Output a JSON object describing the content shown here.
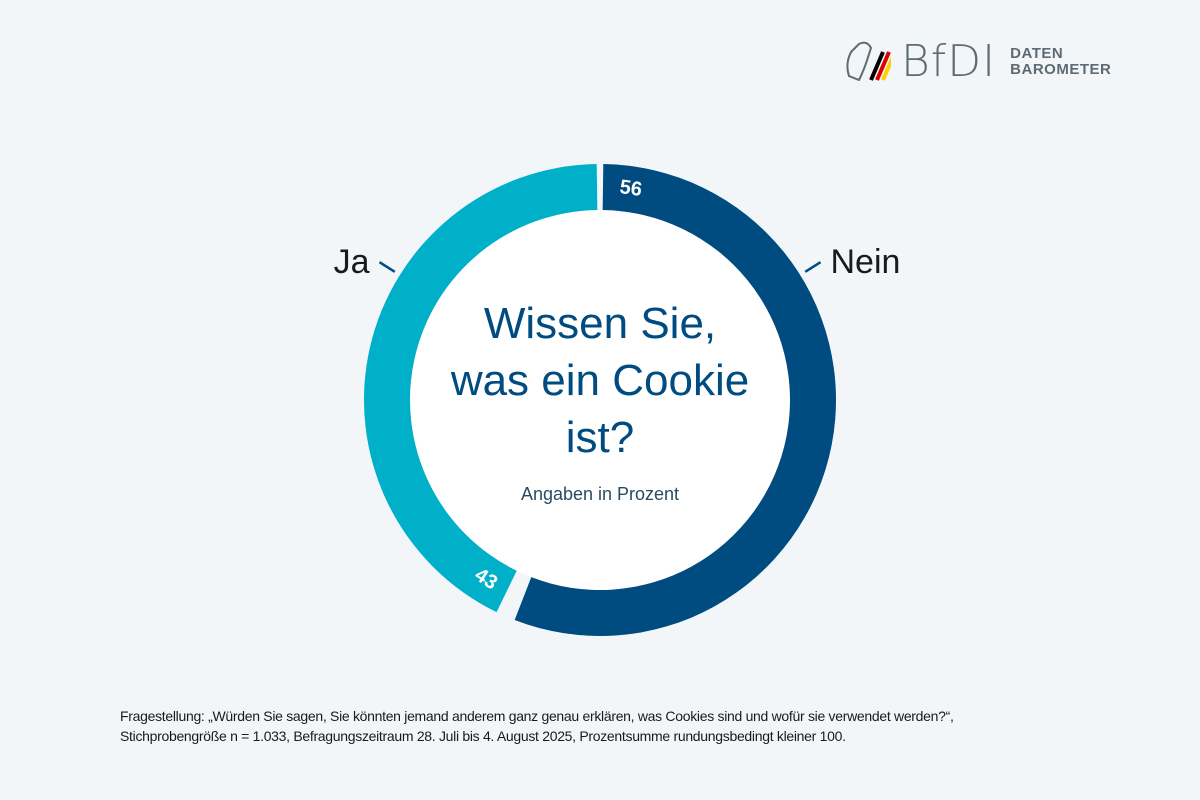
{
  "logo": {
    "brand": "BfDI",
    "line1": "DATEN",
    "line2": "BAROMETER",
    "flag_colors": [
      "#000000",
      "#dd0000",
      "#ffce00"
    ]
  },
  "chart_data": {
    "type": "pie",
    "donut": true,
    "title": "Wissen Sie, was ein Cookie ist?",
    "title_lines": [
      "Wissen Sie,",
      "was ein Cookie",
      "ist?"
    ],
    "subtitle": "Angaben in Prozent",
    "categories": [
      "Nein",
      "Ja"
    ],
    "values": [
      56,
      43
    ],
    "value_labels": [
      "56",
      "43"
    ],
    "colors": [
      "#004b80",
      "#00b0c8"
    ],
    "legend": "outside labels"
  },
  "footnote": {
    "line1": "Fragestellung: „Würden Sie sagen, Sie könnten jemand anderem ganz genau erklären, was Cookies sind und wofür sie verwendet werden?“,",
    "line2": "Stichprobengröße n = 1.033, Befragungszeitraum 28. Juli bis 4. August 2025, Prozentsumme rundungsbedingt kleiner 100."
  }
}
